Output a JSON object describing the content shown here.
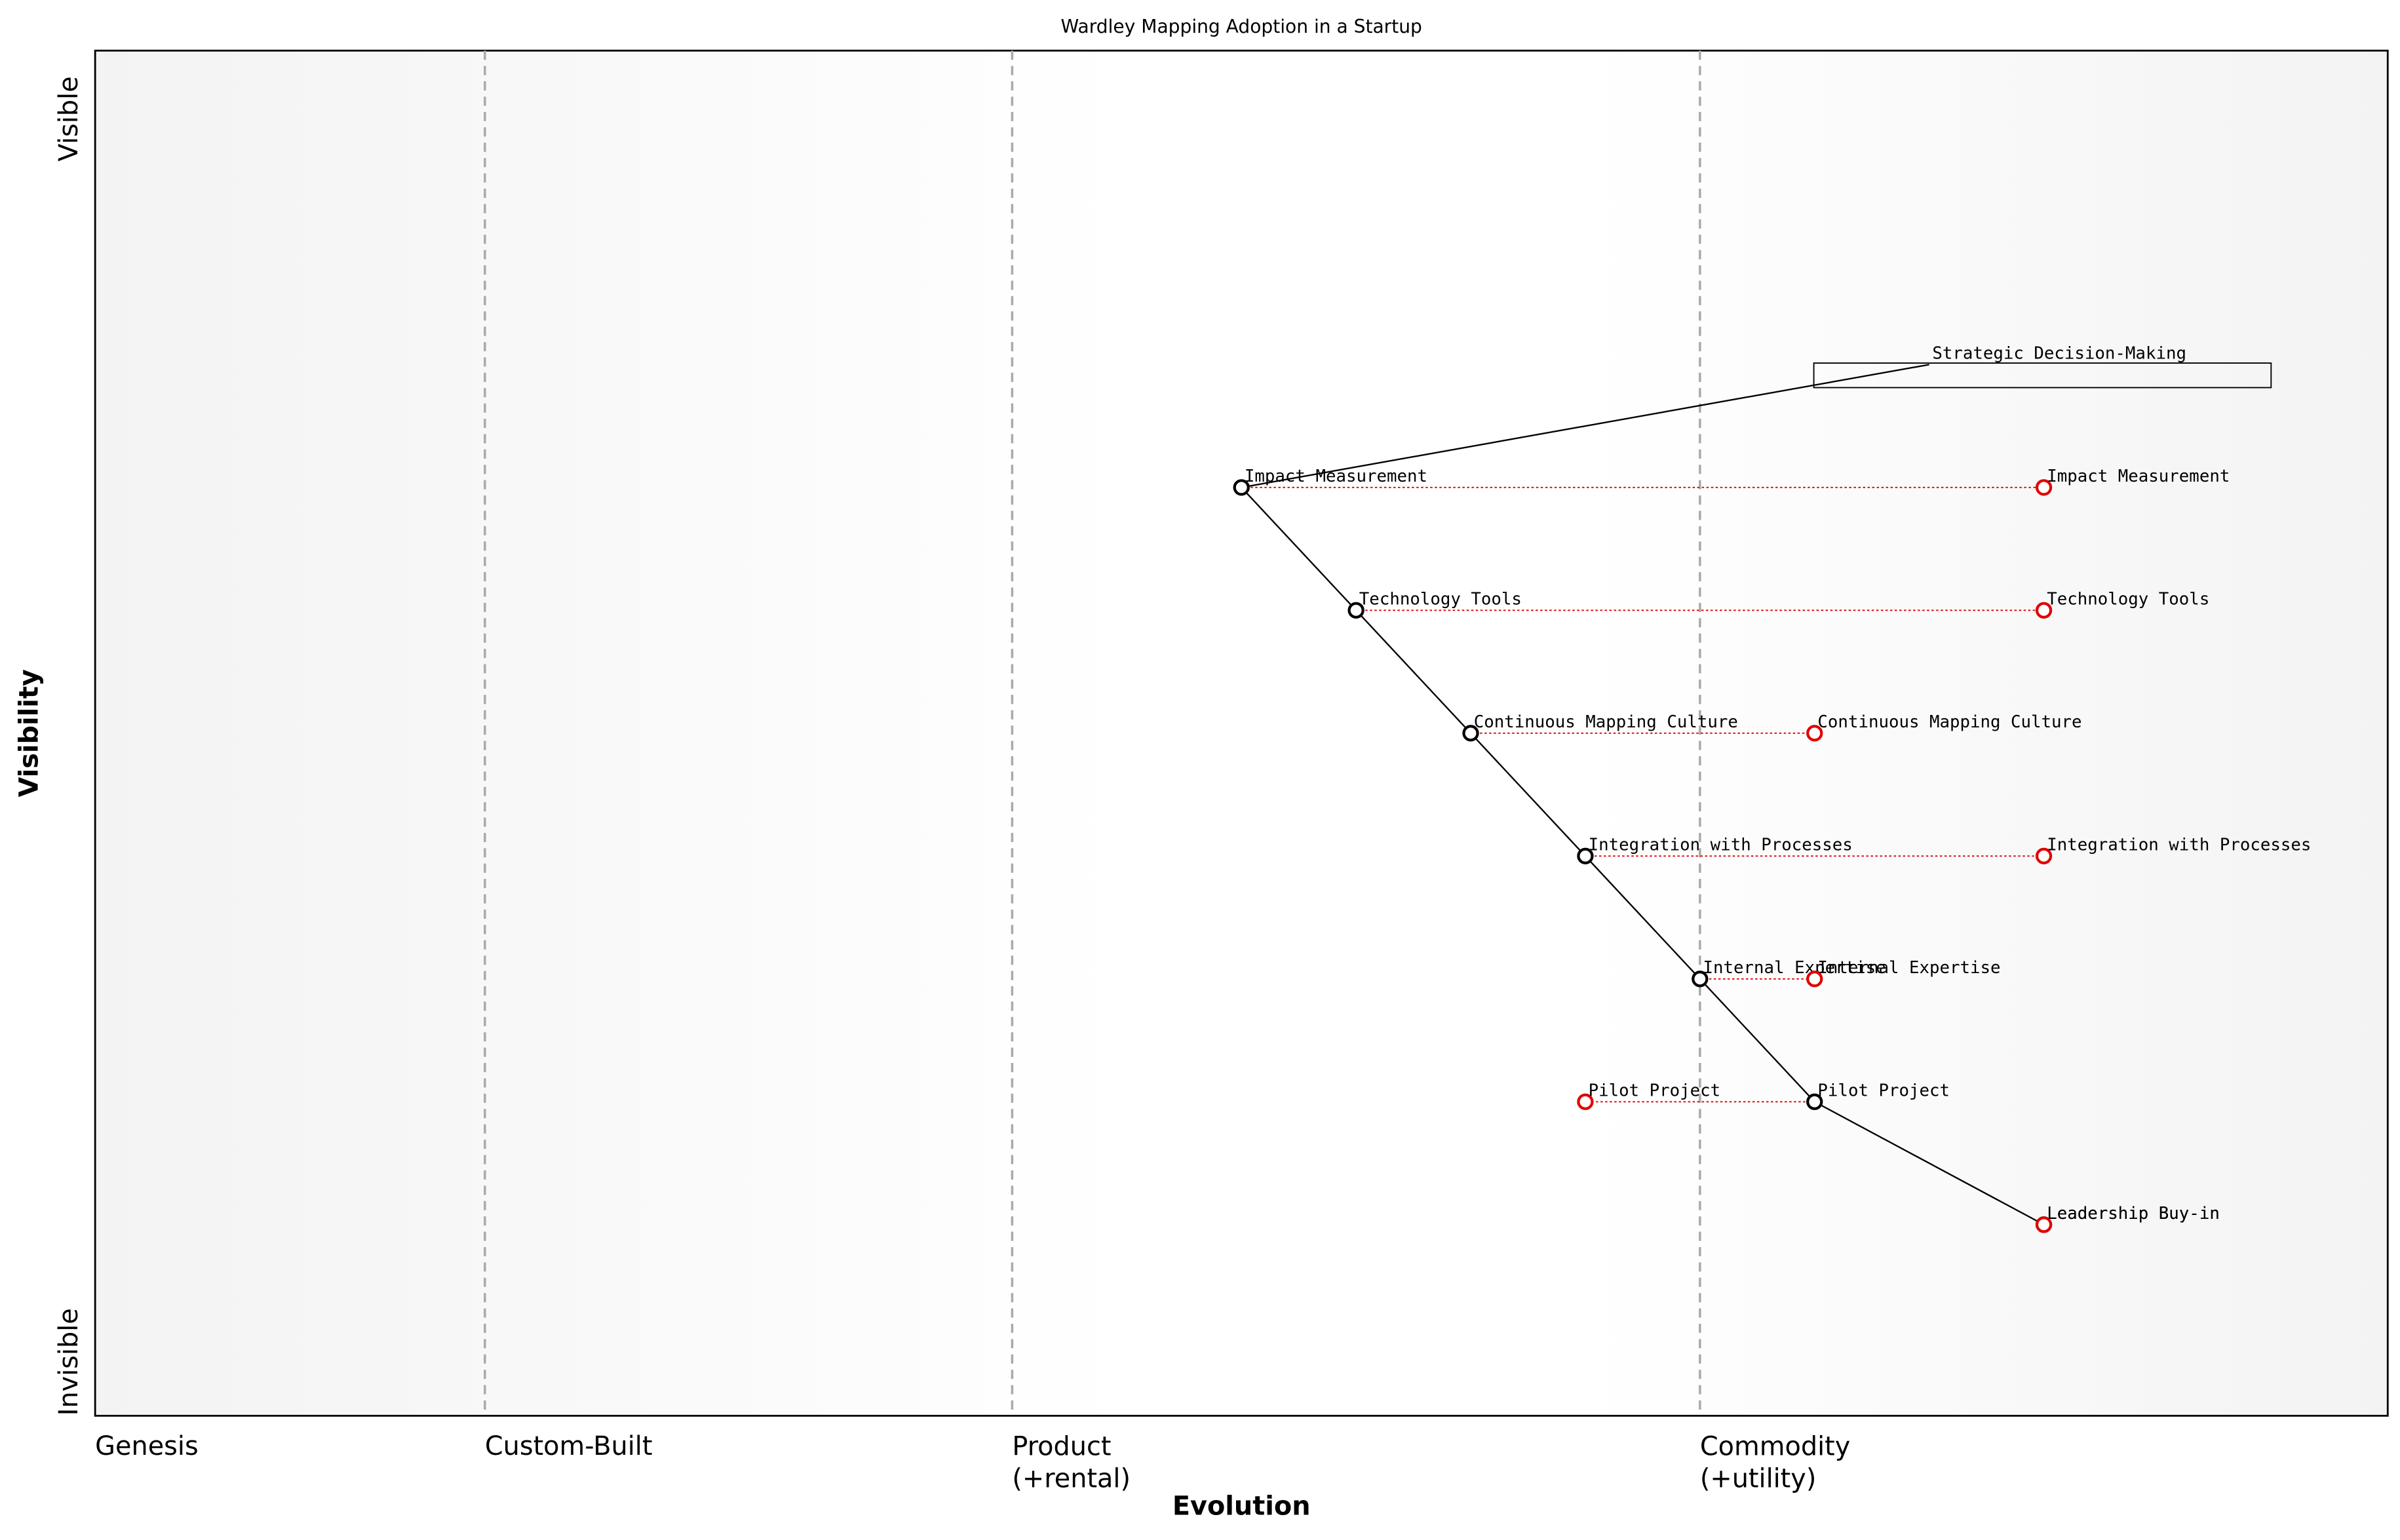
{
  "chart_data": {
    "type": "wardley",
    "title": "Wardley Mapping Adoption in a Startup",
    "xlabel": "Evolution",
    "ylabel": "Visibility",
    "ylim": [
      0,
      1
    ],
    "xlim": [
      0,
      1
    ],
    "yticks": [
      {
        "value": 0,
        "label": "Invisible"
      },
      {
        "value": 0.95,
        "label": "Visible"
      }
    ],
    "xticks": [
      {
        "value": 0,
        "label": "Genesis"
      },
      {
        "value": 0.17,
        "label": "Custom-Built"
      },
      {
        "value": 0.4,
        "label": "Product\n(+rental)"
      },
      {
        "value": 0.7,
        "label": "Commodity\n(+utility)"
      }
    ],
    "components": [
      {
        "name": "Strategic Decision-Making",
        "maturity": 0.8,
        "visibility": 0.77
      },
      {
        "name": "Impact Measurement",
        "maturity": 0.5,
        "visibility": 0.68
      },
      {
        "name": "Technology Tools",
        "maturity": 0.55,
        "visibility": 0.59
      },
      {
        "name": "Continuous Mapping Culture",
        "maturity": 0.6,
        "visibility": 0.5
      },
      {
        "name": "Integration with Processes",
        "maturity": 0.65,
        "visibility": 0.41
      },
      {
        "name": "Internal Expertise",
        "maturity": 0.7,
        "visibility": 0.32
      },
      {
        "name": "Pilot Project",
        "maturity": 0.75,
        "visibility": 0.23
      },
      {
        "name": "Leadership Buy-in",
        "maturity": 0.85,
        "visibility": 0.14
      }
    ],
    "evolve": [
      {
        "name": "Impact Measurement",
        "maturity": 0.85
      },
      {
        "name": "Technology Tools",
        "maturity": 0.85
      },
      {
        "name": "Continuous Mapping Culture",
        "maturity": 0.75
      },
      {
        "name": "Integration with Processes",
        "maturity": 0.85
      },
      {
        "name": "Internal Expertise",
        "maturity": 0.75
      },
      {
        "name": "Pilot Project",
        "maturity": 0.65
      },
      {
        "name": "Leadership Buy-in",
        "maturity": 0.85
      }
    ],
    "links": [
      [
        "Strategic Decision-Making",
        "Impact Measurement"
      ],
      [
        "Impact Measurement",
        "Technology Tools"
      ],
      [
        "Technology Tools",
        "Continuous Mapping Culture"
      ],
      [
        "Continuous Mapping Culture",
        "Integration with Processes"
      ],
      [
        "Integration with Processes",
        "Internal Expertise"
      ],
      [
        "Internal Expertise",
        "Pilot Project"
      ],
      [
        "Pilot Project",
        "Leadership Buy-in"
      ]
    ],
    "component_color": "#000000",
    "evolve_color": "#e00000"
  }
}
